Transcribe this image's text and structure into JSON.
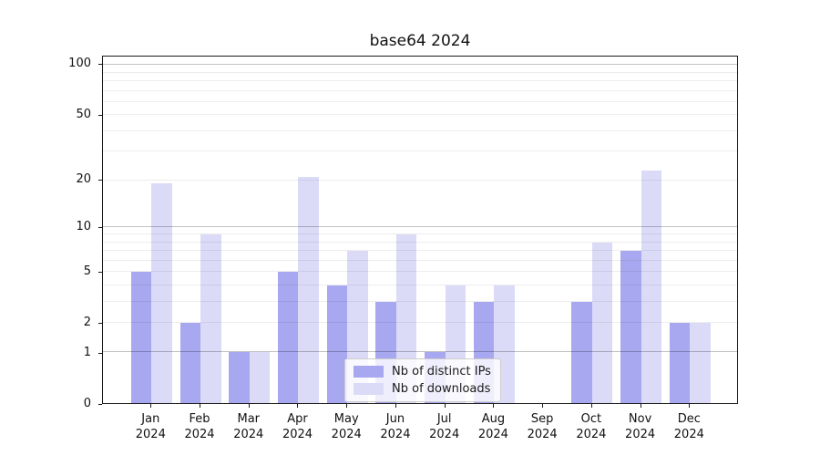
{
  "chart_data": {
    "type": "bar",
    "title": "base64 2024",
    "categories": [
      "Jan",
      "Feb",
      "Mar",
      "Apr",
      "May",
      "Jun",
      "Jul",
      "Aug",
      "Sep",
      "Oct",
      "Nov",
      "Dec"
    ],
    "category_year": "2024",
    "series": [
      {
        "name": "Nb of distinct IPs",
        "color": "#a8a8f0",
        "values": [
          5,
          2,
          1,
          5,
          4,
          3,
          1,
          3,
          0,
          3,
          7,
          2
        ]
      },
      {
        "name": "Nb of downloads",
        "color": "#dbdbf8",
        "values": [
          19,
          9,
          1,
          21,
          7,
          9,
          4,
          4,
          0,
          8,
          23,
          2
        ]
      }
    ],
    "yscale": "log1p",
    "ylim": [
      0,
      112.6
    ],
    "yticks": [
      0,
      1,
      2,
      5,
      10,
      20,
      50,
      100
    ],
    "major_gridlines": [
      1,
      10,
      100
    ],
    "minor_gridlines": [
      2,
      3,
      4,
      5,
      6,
      7,
      8,
      9,
      20,
      30,
      40,
      50,
      60,
      70,
      80,
      90
    ],
    "grid": true,
    "legend_position": "lower center",
    "xlabel": "",
    "ylabel": ""
  }
}
